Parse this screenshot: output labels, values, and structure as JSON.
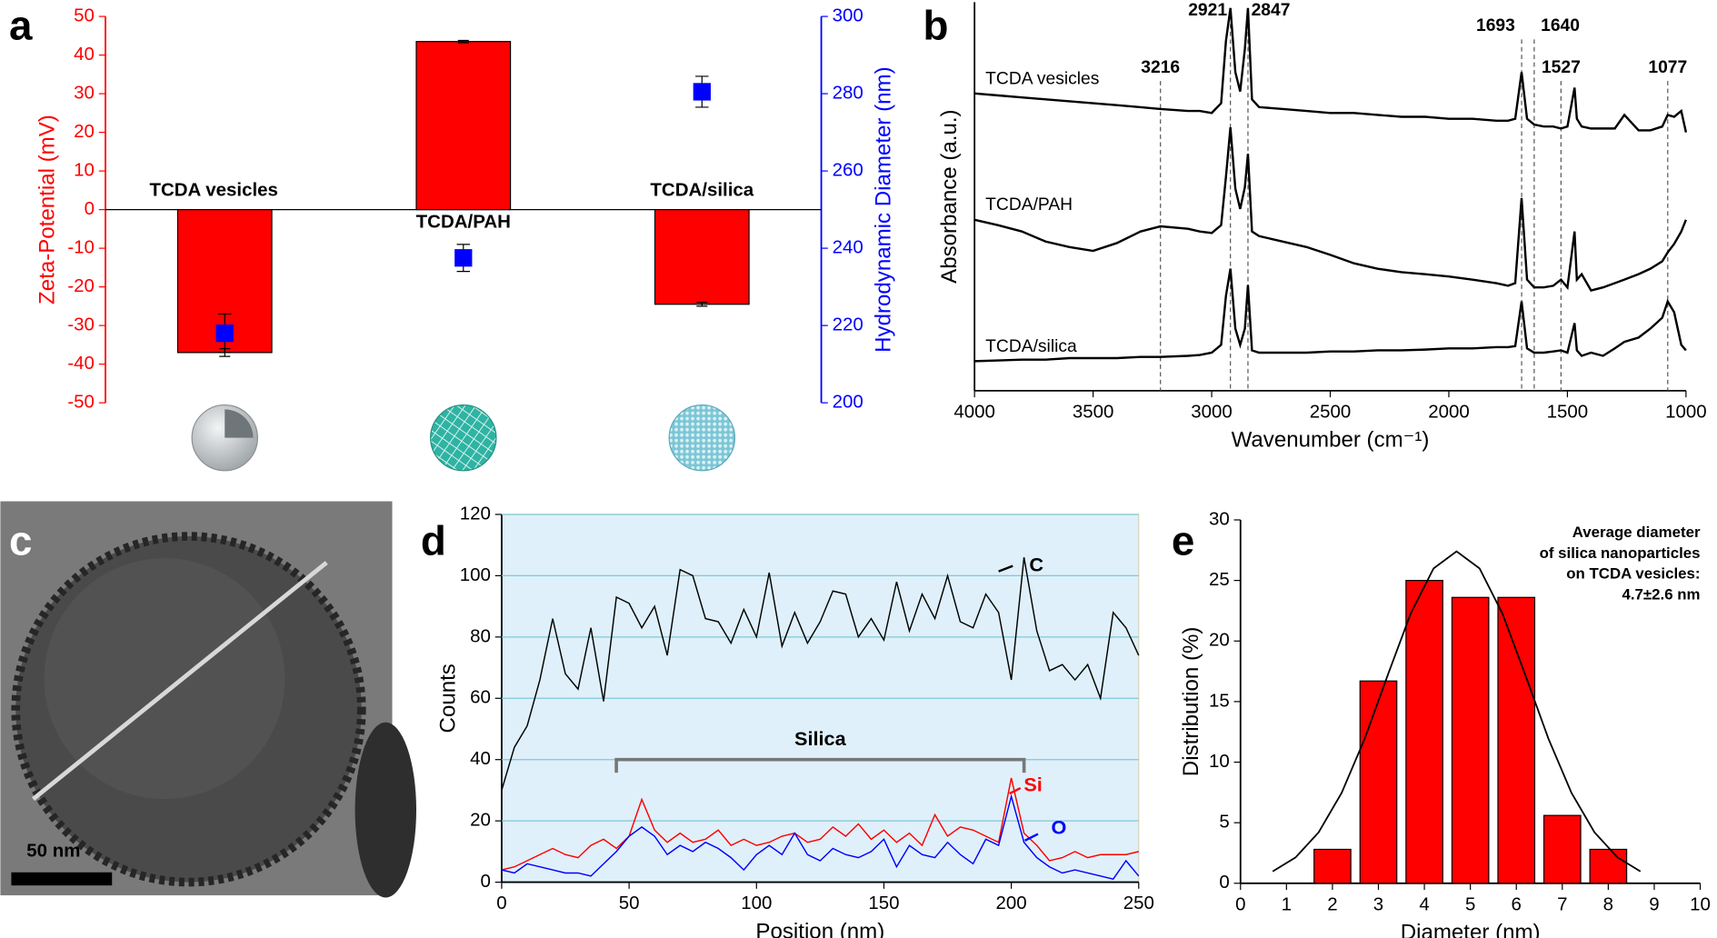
{
  "chart_data": [
    {
      "type": "bar",
      "label": "a",
      "categories": [
        "TCDA vesicles",
        "TCDA/PAH",
        "TCDA/silica"
      ],
      "ylabel": "Zeta-Potential (mV)",
      "y2label": "Hydrodynamic Diameter (nm)",
      "ylim": [
        -50,
        50
      ],
      "yticks": [
        -50,
        -40,
        -30,
        -20,
        -10,
        0,
        10,
        20,
        30,
        40,
        50
      ],
      "y2lim": [
        200,
        300
      ],
      "y2ticks": [
        200,
        220,
        240,
        260,
        280,
        300
      ],
      "series": [
        {
          "color": "#ff0000",
          "values": [
            -37,
            43.5,
            -24.5
          ],
          "errors": [
            1,
            0.3,
            0.5
          ]
        },
        {
          "color": "#0000ff",
          "axis": "y2",
          "values": [
            218,
            237.5,
            280.5
          ],
          "errors": [
            5,
            3.5,
            4
          ]
        }
      ]
    },
    {
      "type": "line",
      "label": "b",
      "xlabel": "Wavenumber (cm⁻¹)",
      "ylabel": "Absorbance (a.u.)",
      "xlim": [
        4000,
        1000
      ],
      "xticks": [
        4000,
        3500,
        3000,
        2500,
        2000,
        1500,
        1000
      ],
      "ylim": [
        0,
        100
      ],
      "x": [
        4000,
        3900,
        3800,
        3700,
        3600,
        3500,
        3400,
        3300,
        3216,
        3100,
        3050,
        3000,
        2960,
        2940,
        2921,
        2900,
        2880,
        2860,
        2847,
        2830,
        2800,
        2700,
        2600,
        2500,
        2400,
        2300,
        2200,
        2100,
        2000,
        1900,
        1800,
        1750,
        1720,
        1693,
        1670,
        1640,
        1600,
        1560,
        1527,
        1500,
        1470,
        1460,
        1440,
        1400,
        1350,
        1300,
        1260,
        1200,
        1150,
        1100,
        1077,
        1050,
        1020,
        1000
      ],
      "series": [
        {
          "name": "TCDA vesicles",
          "color": "#000000",
          "values": [
            76.5,
            76,
            75.5,
            75,
            74.5,
            74,
            73.5,
            73,
            72.5,
            72,
            72,
            71.5,
            74,
            90,
            98.5,
            82,
            77,
            88,
            98.5,
            75,
            73,
            72.5,
            72,
            71.5,
            71.5,
            71,
            70.5,
            70.5,
            70,
            70,
            69.5,
            69.5,
            70,
            82,
            70,
            68.5,
            68,
            68,
            67.5,
            68,
            78,
            70,
            68,
            67.5,
            67.5,
            67.5,
            71,
            67,
            67,
            68,
            71,
            70.5,
            72,
            66.5
          ]
        },
        {
          "name": "TCDA/PAH",
          "color": "#000000",
          "values": [
            44,
            42.6,
            41,
            38.4,
            37,
            36,
            38,
            41,
            42.3,
            41.7,
            41,
            40.6,
            42.6,
            55,
            67.8,
            52,
            46.8,
            52.4,
            61,
            41,
            39.8,
            38.4,
            37,
            35,
            32.8,
            31.4,
            30.5,
            30,
            29.4,
            28.6,
            27.7,
            27,
            27.7,
            49.6,
            28.6,
            26.6,
            26.6,
            27,
            28.6,
            26.6,
            41,
            28.6,
            30,
            25.8,
            26.6,
            27.7,
            28.6,
            30,
            31.4,
            33.3,
            35.6,
            37.8,
            41,
            44
          ]
        },
        {
          "name": "TCDA/silica",
          "color": "#000000",
          "values": [
            7.6,
            7.8,
            8,
            8,
            8.4,
            8.4,
            8.4,
            8.7,
            8.7,
            9,
            9.2,
            9.8,
            11.8,
            24.4,
            31.4,
            16,
            11.8,
            16,
            27.2,
            10.4,
            9.8,
            9.8,
            9.8,
            10.1,
            10.1,
            10.4,
            10.4,
            10.6,
            10.9,
            10.9,
            11.2,
            11.2,
            11.5,
            23,
            10.9,
            9.8,
            9.8,
            10.1,
            10.4,
            9.8,
            17.4,
            10.4,
            9,
            9.8,
            9,
            10.9,
            12.6,
            13.7,
            16,
            18.8,
            23,
            20.2,
            11.8,
            10.4
          ]
        }
      ],
      "peaks": [
        3216,
        2921,
        2847,
        1693,
        1640,
        1527,
        1077
      ]
    },
    {
      "type": "image",
      "label": "c",
      "scale_bar": "50 nm"
    },
    {
      "type": "line",
      "label": "d",
      "xlabel": "Position (nm)",
      "ylabel": "Counts",
      "xlim": [
        0,
        250
      ],
      "xticks": [
        0,
        50,
        100,
        150,
        200,
        250
      ],
      "ylim": [
        0,
        120
      ],
      "yticks": [
        0,
        20,
        40,
        60,
        80,
        100,
        120
      ],
      "grid": true,
      "background": "#dff0fa",
      "x": [
        0,
        5,
        10,
        15,
        20,
        25,
        30,
        35,
        40,
        45,
        50,
        55,
        60,
        65,
        70,
        75,
        80,
        85,
        90,
        95,
        100,
        105,
        110,
        115,
        120,
        125,
        130,
        135,
        140,
        145,
        150,
        155,
        160,
        165,
        170,
        175,
        180,
        185,
        190,
        195,
        200,
        205,
        210,
        215,
        220,
        225,
        230,
        235,
        240,
        245,
        250
      ],
      "series": [
        {
          "name": "C",
          "color": "#000000",
          "values": [
            30,
            44,
            51,
            66,
            86,
            68,
            63,
            83,
            59,
            93,
            91,
            83,
            90,
            74,
            102,
            100,
            86,
            85,
            78,
            89,
            80,
            101,
            77,
            88,
            78,
            85,
            95,
            94,
            80,
            86,
            79,
            98,
            82,
            94,
            86,
            100,
            85,
            83,
            94,
            88,
            66,
            106,
            82,
            69,
            71,
            66,
            71,
            60,
            88,
            83,
            74
          ]
        },
        {
          "name": "Si",
          "color": "#ff0000",
          "values": [
            4,
            5,
            7,
            9,
            11,
            9,
            8,
            12,
            14,
            11,
            15,
            27,
            17,
            13,
            16,
            13,
            14,
            17,
            12,
            14,
            12,
            13,
            15,
            16,
            13,
            14,
            18,
            15,
            19,
            14,
            17,
            13,
            16,
            12,
            22,
            15,
            18,
            17,
            15,
            13,
            34,
            16,
            12,
            7,
            8,
            10,
            8,
            9,
            9,
            9,
            10
          ]
        },
        {
          "name": "O",
          "color": "#0000ff",
          "values": [
            4,
            3,
            6,
            5,
            4,
            3,
            3,
            2,
            6,
            10,
            15,
            18,
            15,
            9,
            12,
            10,
            13,
            11,
            8,
            4,
            9,
            12,
            9,
            16,
            9,
            7,
            11,
            9,
            8,
            10,
            14,
            5,
            12,
            9,
            8,
            13,
            9,
            6,
            14,
            12,
            28,
            13,
            8,
            5,
            3,
            4,
            3,
            2,
            1,
            7,
            2
          ]
        }
      ],
      "bracket": {
        "label": "Silica",
        "x": [
          45,
          205
        ],
        "y": 40
      }
    },
    {
      "type": "bar",
      "label": "e",
      "xlabel": "Diameter (nm)",
      "ylabel": "Distribution (%)",
      "xlim": [
        0,
        10
      ],
      "xticks": [
        0,
        1,
        2,
        3,
        4,
        5,
        6,
        7,
        8,
        9,
        10
      ],
      "ylim": [
        0,
        30
      ],
      "yticks": [
        0,
        5,
        10,
        15,
        20,
        25,
        30
      ],
      "x": [
        2,
        3,
        4,
        5,
        6,
        7,
        8
      ],
      "values": [
        2.8,
        16.7,
        25,
        23.6,
        23.6,
        5.6,
        2.8
      ],
      "color": "#ff0000",
      "fit": {
        "x": [
          0.7,
          1.2,
          1.7,
          2.2,
          2.7,
          3.2,
          3.7,
          4.2,
          4.7,
          5.2,
          5.7,
          6.2,
          6.7,
          7.2,
          7.7,
          8.2,
          8.7
        ],
        "values": [
          0.98,
          2.14,
          4.21,
          7.46,
          11.92,
          17.15,
          22.25,
          26.0,
          27.4,
          26.0,
          22.25,
          17.15,
          11.92,
          7.46,
          4.21,
          2.14,
          0.98
        ]
      },
      "annotation": [
        "Average diameter",
        "of silica nanoparticles",
        "on TCDA vesicles:",
        "4.7±2.6 nm"
      ]
    }
  ]
}
